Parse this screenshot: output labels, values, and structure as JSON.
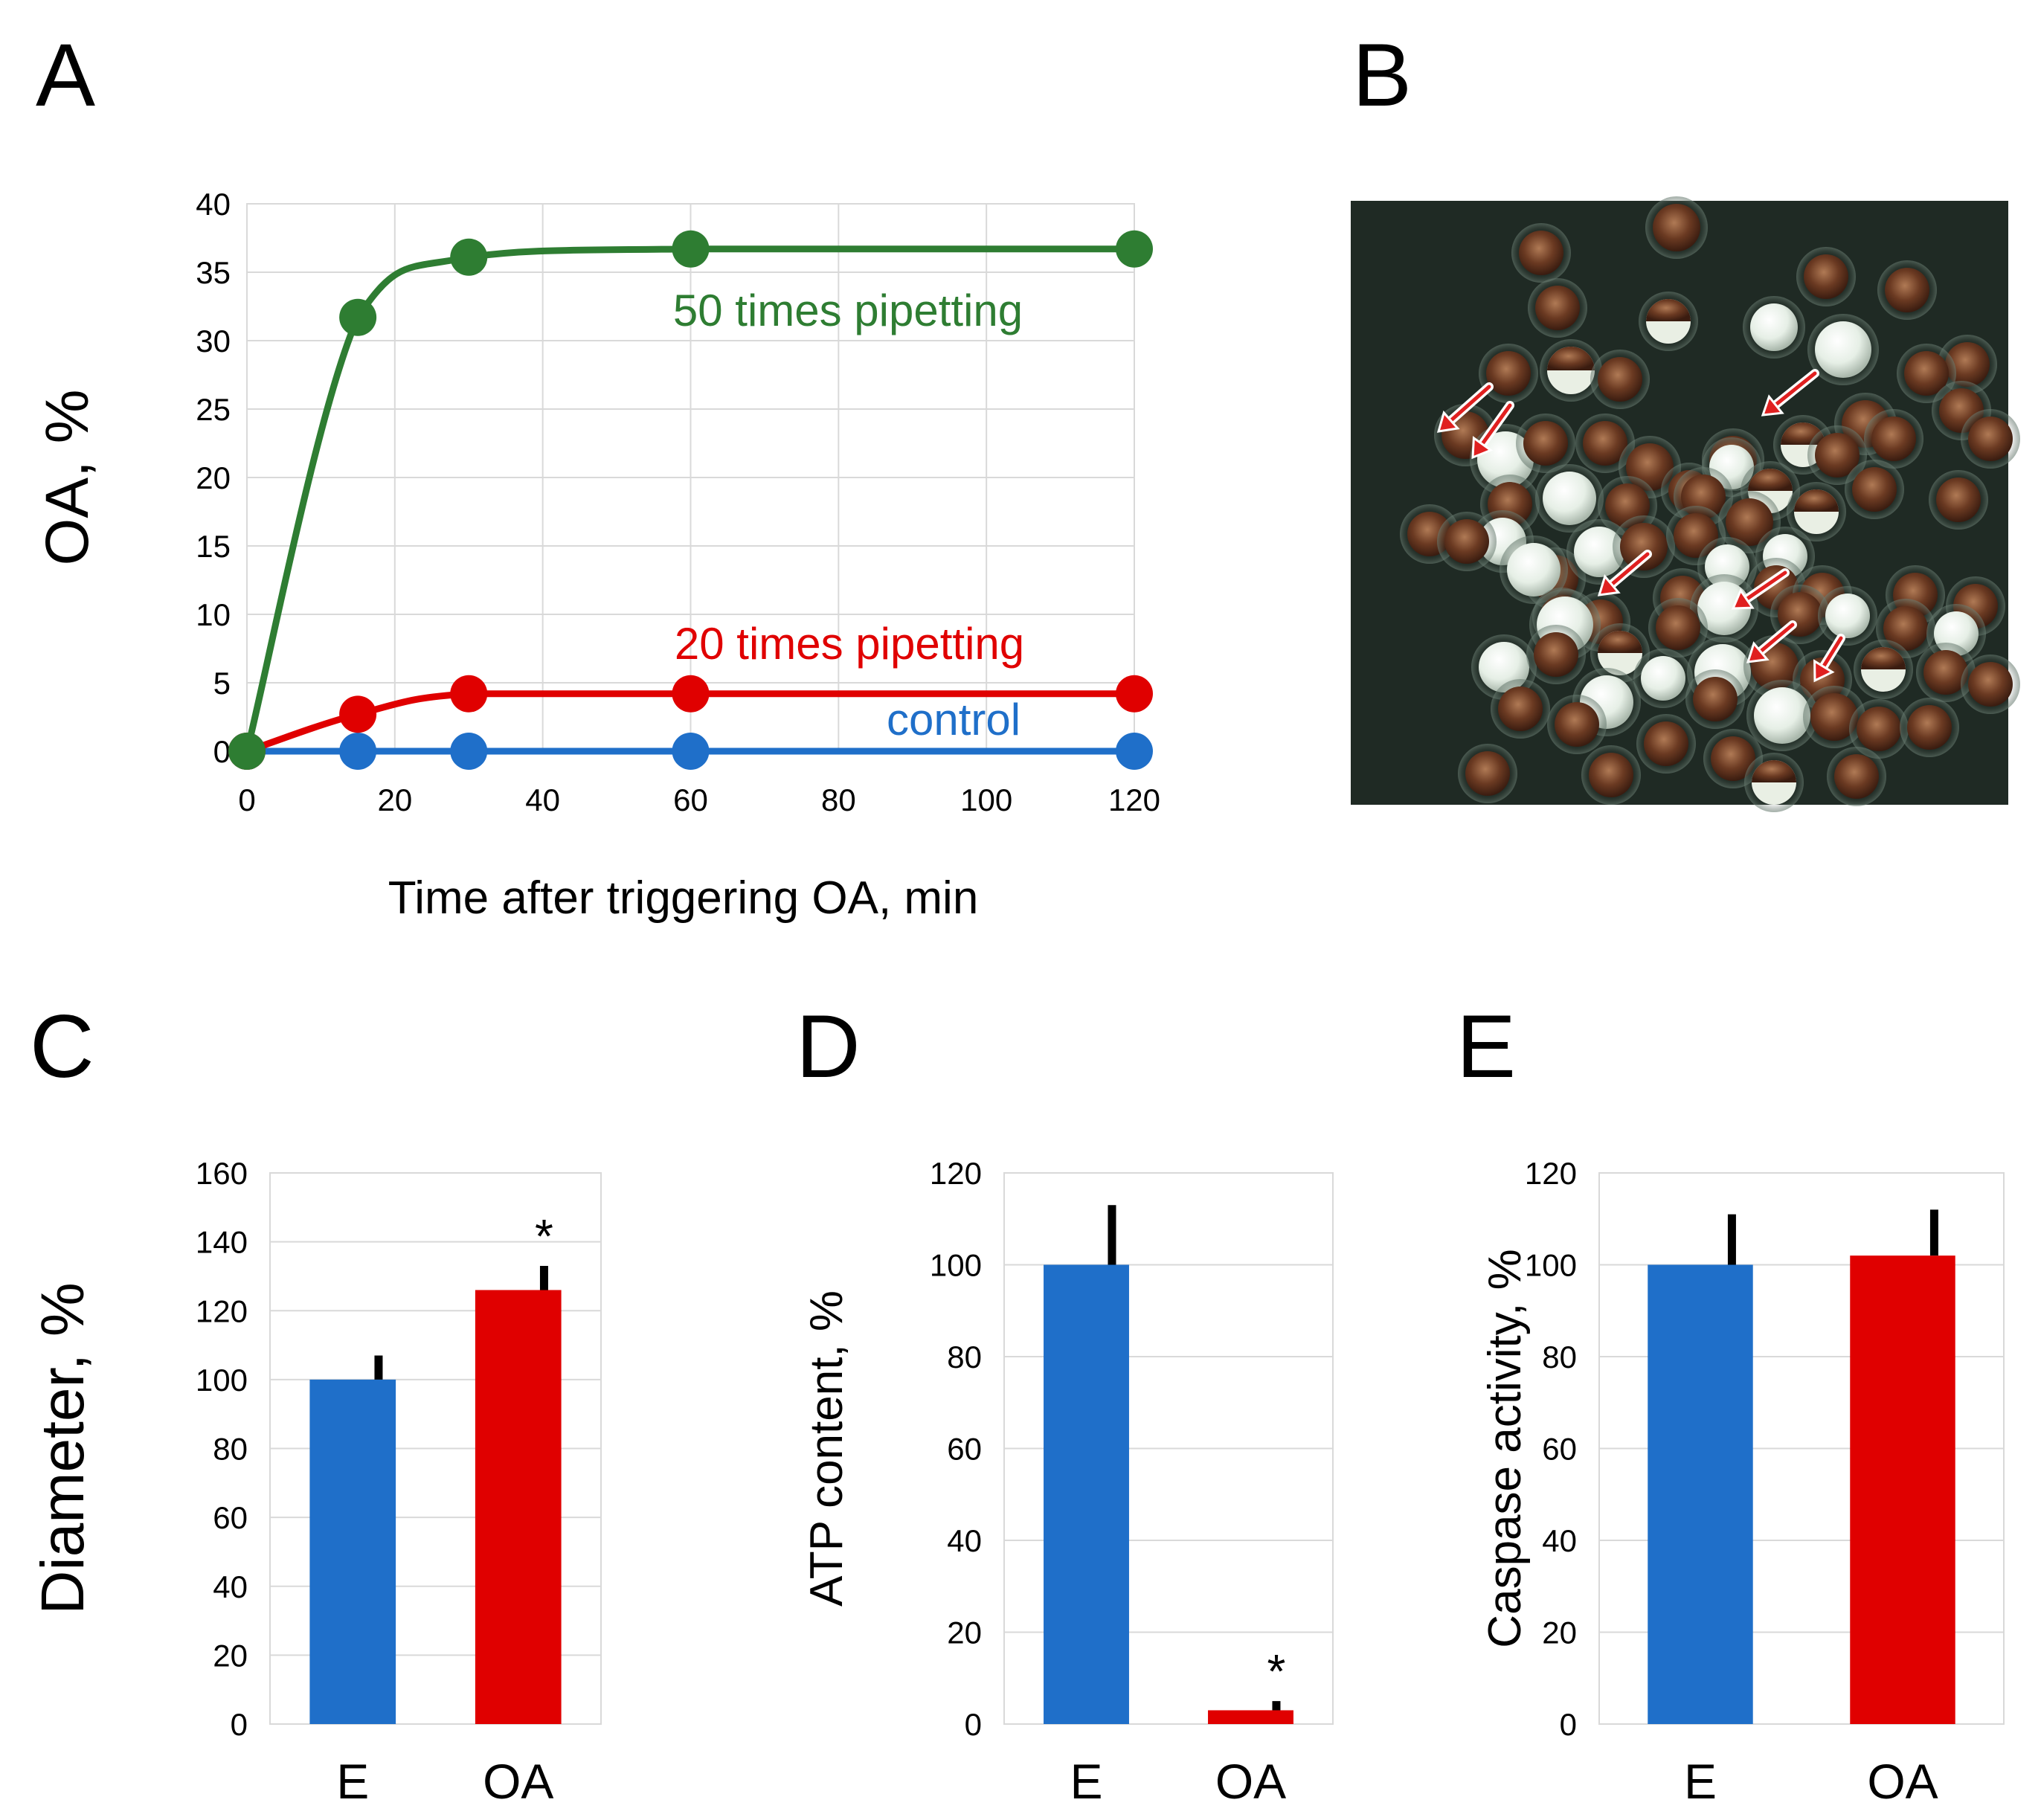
{
  "panels": {
    "a": "A",
    "b": "B",
    "c": "C",
    "d": "D",
    "e": "E"
  },
  "colors": {
    "green": "#2e7d32",
    "red": "#e00000",
    "blue": "#1f6fc9",
    "error_bar": "#000000"
  },
  "photo": {
    "description_icon": "embryo-photo",
    "background": "#1f2a24"
  },
  "chart_data": [
    {
      "panel": "A",
      "type": "line",
      "ylabel": "OA, %",
      "xlabel": "Time after triggering OA, min",
      "xlim": [
        0,
        120
      ],
      "ylim": [
        0,
        40
      ],
      "xticks": [
        0,
        20,
        40,
        60,
        80,
        100,
        120
      ],
      "yticks": [
        0,
        5,
        10,
        15,
        20,
        25,
        30,
        35,
        40
      ],
      "grid": true,
      "series": [
        {
          "name": "50 times pipetting",
          "color": "#2e7d32",
          "x": [
            0,
            15,
            30,
            60,
            120
          ],
          "y": [
            0,
            31.7,
            36.1,
            36.7,
            36.7
          ]
        },
        {
          "name": "20 times pipetting",
          "color": "#e00000",
          "x": [
            0,
            15,
            30,
            60,
            120
          ],
          "y": [
            0,
            2.7,
            4.2,
            4.2,
            4.2
          ]
        },
        {
          "name": "control",
          "color": "#1f6fc9",
          "x": [
            0,
            15,
            30,
            60,
            120
          ],
          "y": [
            0,
            0,
            0,
            0,
            0
          ]
        }
      ]
    },
    {
      "panel": "C",
      "type": "bar",
      "ylabel": "Diameter, %",
      "categories": [
        "E",
        "OA"
      ],
      "values": [
        100,
        126
      ],
      "errors": [
        7,
        7
      ],
      "significance": [
        "",
        "*"
      ],
      "colors": [
        "#1f6fc9",
        "#e00000"
      ],
      "ylim": [
        0,
        160
      ],
      "yticks": [
        0,
        20,
        40,
        60,
        80,
        100,
        120,
        140,
        160
      ],
      "grid": true
    },
    {
      "panel": "D",
      "type": "bar",
      "ylabel": "ATP content, %",
      "categories": [
        "E",
        "OA"
      ],
      "values": [
        100,
        3
      ],
      "errors": [
        13,
        2
      ],
      "significance": [
        "",
        "*"
      ],
      "colors": [
        "#1f6fc9",
        "#e00000"
      ],
      "ylim": [
        0,
        120
      ],
      "yticks": [
        0,
        20,
        40,
        60,
        80,
        100,
        120
      ],
      "grid": true
    },
    {
      "panel": "E",
      "type": "bar",
      "ylabel": "Caspase activity, %",
      "categories": [
        "E",
        "OA"
      ],
      "values": [
        100,
        102
      ],
      "errors": [
        11,
        10
      ],
      "significance": [
        "",
        ""
      ],
      "colors": [
        "#1f6fc9",
        "#e00000"
      ],
      "ylim": [
        0,
        120
      ],
      "yticks": [
        0,
        20,
        40,
        60,
        80,
        100,
        120
      ],
      "grid": true
    }
  ]
}
